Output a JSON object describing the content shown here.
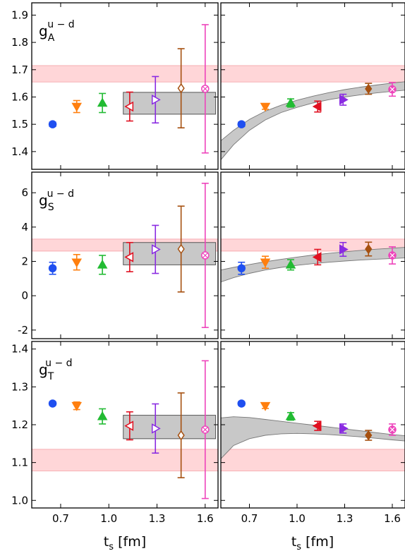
{
  "figure": {
    "xlabel": "t",
    "xlabel_sub": "s",
    "xlabel_unit": " [fm]"
  },
  "chart_data": [
    {
      "type": "scatter",
      "panel": "gA-left",
      "label_main": "g",
      "label_sub": "A",
      "label_sup": "u − d",
      "xlim": [
        0.52,
        1.68
      ],
      "ylim": [
        1.335,
        1.945
      ],
      "xticks": [
        "0.7",
        "1.0",
        "1.3",
        "1.6"
      ],
      "yticks": [
        "1.4",
        "1.5",
        "1.6",
        "1.7",
        "1.8",
        "1.9"
      ],
      "band": {
        "lower": 1.655,
        "upper": 1.715
      },
      "fit_box": {
        "x0": 1.09,
        "x1": 1.665,
        "lower": 1.537,
        "upper": 1.617
      },
      "points": [
        {
          "x": 0.65,
          "y": 1.5,
          "err": 0.008,
          "marker": "circle",
          "color": "#1f4ff0",
          "filled": true
        },
        {
          "x": 0.8,
          "y": 1.565,
          "err": 0.022,
          "marker": "tri-down",
          "color": "#ff7f0e",
          "filled": true
        },
        {
          "x": 0.96,
          "y": 1.578,
          "err": 0.035,
          "marker": "tri-up",
          "color": "#22bb33",
          "filled": true
        },
        {
          "x": 1.13,
          "y": 1.565,
          "err": 0.053,
          "marker": "tri-left",
          "color": "#e01020",
          "filled": false
        },
        {
          "x": 1.29,
          "y": 1.59,
          "err": 0.085,
          "marker": "tri-right",
          "color": "#8a2be2",
          "filled": false
        },
        {
          "x": 1.45,
          "y": 1.632,
          "err": 0.145,
          "marker": "diamond",
          "color": "#a65010",
          "filled": false
        },
        {
          "x": 1.6,
          "y": 1.63,
          "err": 0.235,
          "marker": "x-circle",
          "color": "#ee44bb",
          "filled": false
        }
      ]
    },
    {
      "type": "scatter",
      "panel": "gA-right",
      "xlim": [
        0.52,
        1.68
      ],
      "ylim": [
        1.335,
        1.945
      ],
      "xticks": [
        "0.7",
        "1.0",
        "1.3",
        "1.6"
      ],
      "band": {
        "lower": 1.655,
        "upper": 1.715
      },
      "fit_curve": {
        "x": [
          0.52,
          0.6,
          0.7,
          0.8,
          0.9,
          1.0,
          1.1,
          1.2,
          1.3,
          1.4,
          1.5,
          1.6,
          1.68
        ],
        "lower": [
          1.37,
          1.425,
          1.478,
          1.516,
          1.543,
          1.562,
          1.578,
          1.59,
          1.6,
          1.608,
          1.615,
          1.621,
          1.625
        ],
        "upper": [
          1.44,
          1.478,
          1.518,
          1.548,
          1.57,
          1.588,
          1.603,
          1.616,
          1.627,
          1.636,
          1.644,
          1.651,
          1.656
        ]
      },
      "points": [
        {
          "x": 0.65,
          "y": 1.5,
          "err": 0.008,
          "marker": "circle",
          "color": "#1f4ff0",
          "filled": true
        },
        {
          "x": 0.8,
          "y": 1.565,
          "err": 0.01,
          "marker": "tri-down",
          "color": "#ff7f0e",
          "filled": true
        },
        {
          "x": 0.96,
          "y": 1.578,
          "err": 0.015,
          "marker": "tri-up",
          "color": "#22bb33",
          "filled": true
        },
        {
          "x": 1.13,
          "y": 1.565,
          "err": 0.02,
          "marker": "tri-left",
          "color": "#e01020",
          "filled": true
        },
        {
          "x": 1.29,
          "y": 1.59,
          "err": 0.02,
          "marker": "tri-right",
          "color": "#8a2be2",
          "filled": true
        },
        {
          "x": 1.45,
          "y": 1.63,
          "err": 0.02,
          "marker": "diamond",
          "color": "#a65010",
          "filled": true
        },
        {
          "x": 1.6,
          "y": 1.628,
          "err": 0.025,
          "marker": "x-circle",
          "color": "#ee44bb",
          "filled": true
        }
      ]
    },
    {
      "type": "scatter",
      "panel": "gS-left",
      "label_main": "g",
      "label_sub": "S",
      "label_sup": "u − d",
      "xlim": [
        0.52,
        1.68
      ],
      "ylim": [
        -2.5,
        7.2
      ],
      "xticks": [
        "0.7",
        "1.0",
        "1.3",
        "1.6"
      ],
      "yticks": [
        "-2",
        "0",
        "2",
        "4",
        "6"
      ],
      "band": {
        "lower": 2.6,
        "upper": 3.3
      },
      "fit_box": {
        "x0": 1.09,
        "x1": 1.665,
        "lower": 1.8,
        "upper": 3.1
      },
      "points": [
        {
          "x": 0.65,
          "y": 1.6,
          "err": 0.35,
          "marker": "circle",
          "color": "#1f4ff0",
          "filled": true
        },
        {
          "x": 0.8,
          "y": 1.95,
          "err": 0.45,
          "marker": "tri-down",
          "color": "#ff7f0e",
          "filled": true
        },
        {
          "x": 0.96,
          "y": 1.8,
          "err": 0.55,
          "marker": "tri-up",
          "color": "#22bb33",
          "filled": true
        },
        {
          "x": 1.13,
          "y": 2.25,
          "err": 0.85,
          "marker": "tri-left",
          "color": "#e01020",
          "filled": false
        },
        {
          "x": 1.29,
          "y": 2.7,
          "err": 1.4,
          "marker": "tri-right",
          "color": "#8a2be2",
          "filled": false
        },
        {
          "x": 1.45,
          "y": 2.72,
          "err": 2.5,
          "marker": "diamond",
          "color": "#a65010",
          "filled": false
        },
        {
          "x": 1.6,
          "y": 2.35,
          "err": 4.2,
          "marker": "x-circle",
          "color": "#ee44bb",
          "filled": false
        }
      ]
    },
    {
      "type": "scatter",
      "panel": "gS-right",
      "xlim": [
        0.52,
        1.68
      ],
      "ylim": [
        -2.5,
        7.2
      ],
      "xticks": [
        "0.7",
        "1.0",
        "1.3",
        "1.6"
      ],
      "band": {
        "lower": 2.6,
        "upper": 3.3
      },
      "fit_curve": {
        "x": [
          0.52,
          0.6,
          0.7,
          0.8,
          0.9,
          1.0,
          1.1,
          1.2,
          1.3,
          1.4,
          1.5,
          1.6,
          1.68
        ],
        "lower": [
          0.8,
          1.05,
          1.3,
          1.5,
          1.65,
          1.77,
          1.87,
          1.95,
          2.02,
          2.08,
          2.13,
          2.17,
          2.2
        ],
        "upper": [
          1.5,
          1.65,
          1.82,
          1.98,
          2.12,
          2.25,
          2.37,
          2.47,
          2.56,
          2.64,
          2.71,
          2.77,
          2.82
        ]
      },
      "points": [
        {
          "x": 0.65,
          "y": 1.6,
          "err": 0.35,
          "marker": "circle",
          "color": "#1f4ff0",
          "filled": true
        },
        {
          "x": 0.8,
          "y": 1.95,
          "err": 0.35,
          "marker": "tri-down",
          "color": "#ff7f0e",
          "filled": true
        },
        {
          "x": 0.96,
          "y": 1.8,
          "err": 0.3,
          "marker": "tri-up",
          "color": "#22bb33",
          "filled": true
        },
        {
          "x": 1.13,
          "y": 2.25,
          "err": 0.45,
          "marker": "tri-left",
          "color": "#e01020",
          "filled": true
        },
        {
          "x": 1.29,
          "y": 2.7,
          "err": 0.4,
          "marker": "tri-right",
          "color": "#8a2be2",
          "filled": true
        },
        {
          "x": 1.45,
          "y": 2.72,
          "err": 0.4,
          "marker": "diamond",
          "color": "#a65010",
          "filled": true
        },
        {
          "x": 1.6,
          "y": 2.35,
          "err": 0.5,
          "marker": "x-circle",
          "color": "#ee44bb",
          "filled": true
        }
      ]
    },
    {
      "type": "scatter",
      "panel": "gT-left",
      "label_main": "g",
      "label_sub": "T",
      "label_sup": "u − d",
      "xlim": [
        0.52,
        1.68
      ],
      "ylim": [
        0.98,
        1.42
      ],
      "xticks": [
        "0.7",
        "1.0",
        "1.3",
        "1.6"
      ],
      "yticks": [
        "1.0",
        "1.1",
        "1.2",
        "1.3",
        "1.4"
      ],
      "band": {
        "lower": 1.078,
        "upper": 1.135
      },
      "fit_box": {
        "x0": 1.09,
        "x1": 1.665,
        "lower": 1.163,
        "upper": 1.225
      },
      "points": [
        {
          "x": 0.65,
          "y": 1.256,
          "err": 0.005,
          "marker": "circle",
          "color": "#1f4ff0",
          "filled": true
        },
        {
          "x": 0.8,
          "y": 1.25,
          "err": 0.01,
          "marker": "tri-down",
          "color": "#ff7f0e",
          "filled": true
        },
        {
          "x": 0.96,
          "y": 1.222,
          "err": 0.02,
          "marker": "tri-up",
          "color": "#22bb33",
          "filled": true
        },
        {
          "x": 1.13,
          "y": 1.197,
          "err": 0.037,
          "marker": "tri-left",
          "color": "#e01020",
          "filled": false
        },
        {
          "x": 1.29,
          "y": 1.19,
          "err": 0.065,
          "marker": "tri-right",
          "color": "#8a2be2",
          "filled": false
        },
        {
          "x": 1.45,
          "y": 1.172,
          "err": 0.112,
          "marker": "diamond",
          "color": "#a65010",
          "filled": false
        },
        {
          "x": 1.6,
          "y": 1.187,
          "err": 0.182,
          "marker": "x-circle",
          "color": "#ee44bb",
          "filled": false
        }
      ]
    },
    {
      "type": "scatter",
      "panel": "gT-right",
      "xlim": [
        0.52,
        1.68
      ],
      "ylim": [
        0.98,
        1.42
      ],
      "xticks": [
        "0.7",
        "1.0",
        "1.3",
        "1.6"
      ],
      "band": {
        "lower": 1.078,
        "upper": 1.135
      },
      "fit_curve": {
        "x": [
          0.52,
          0.6,
          0.7,
          0.8,
          0.9,
          1.0,
          1.1,
          1.2,
          1.3,
          1.4,
          1.5,
          1.6,
          1.68
        ],
        "lower": [
          1.11,
          1.145,
          1.163,
          1.172,
          1.176,
          1.177,
          1.176,
          1.174,
          1.171,
          1.168,
          1.164,
          1.16,
          1.157
        ],
        "upper": [
          1.218,
          1.221,
          1.219,
          1.214,
          1.209,
          1.204,
          1.199,
          1.194,
          1.189,
          1.184,
          1.179,
          1.174,
          1.171
        ]
      },
      "points": [
        {
          "x": 0.65,
          "y": 1.256,
          "err": 0.005,
          "marker": "circle",
          "color": "#1f4ff0",
          "filled": true
        },
        {
          "x": 0.8,
          "y": 1.25,
          "err": 0.007,
          "marker": "tri-down",
          "color": "#ff7f0e",
          "filled": true
        },
        {
          "x": 0.96,
          "y": 1.222,
          "err": 0.01,
          "marker": "tri-up",
          "color": "#22bb33",
          "filled": true
        },
        {
          "x": 1.13,
          "y": 1.197,
          "err": 0.012,
          "marker": "tri-left",
          "color": "#e01020",
          "filled": true
        },
        {
          "x": 1.29,
          "y": 1.19,
          "err": 0.012,
          "marker": "tri-right",
          "color": "#8a2be2",
          "filled": true
        },
        {
          "x": 1.45,
          "y": 1.172,
          "err": 0.013,
          "marker": "diamond",
          "color": "#a65010",
          "filled": true
        },
        {
          "x": 1.6,
          "y": 1.187,
          "err": 0.015,
          "marker": "x-circle",
          "color": "#ee44bb",
          "filled": true
        }
      ]
    }
  ]
}
